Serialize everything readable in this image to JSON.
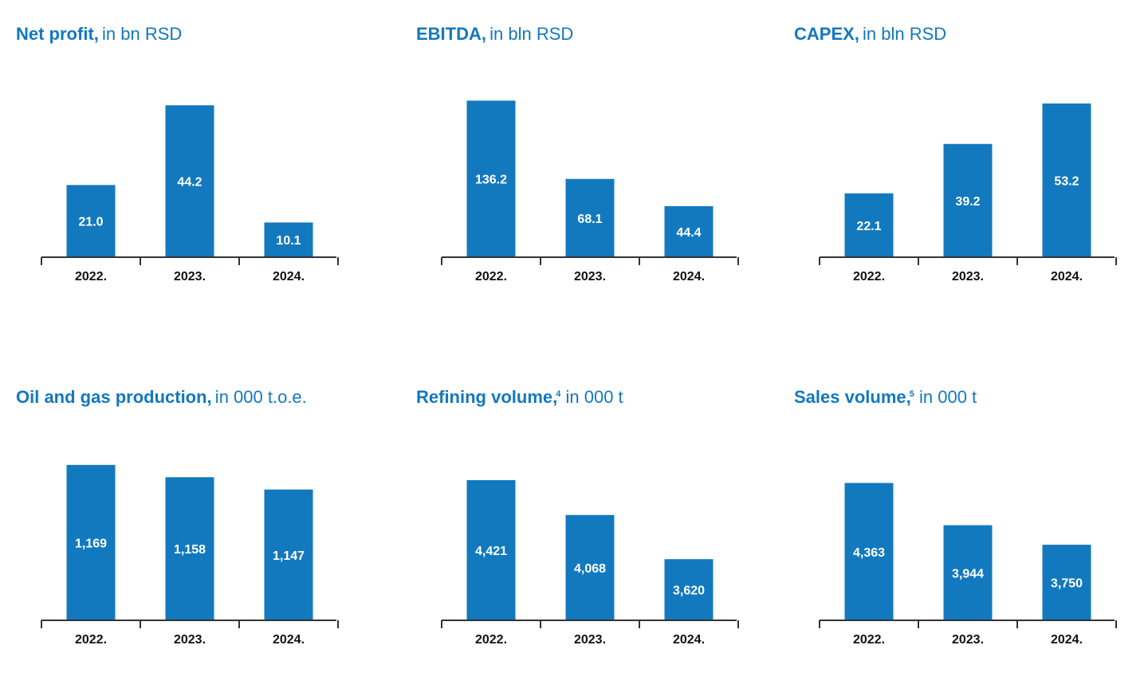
{
  "chart_data": [
    {
      "type": "bar",
      "title": "Net profit,",
      "title_sup": "",
      "unit": " in bn RSD",
      "categories": [
        "2022.",
        "2023.",
        "2024."
      ],
      "values": [
        21.0,
        44.2,
        10.1
      ],
      "value_labels": [
        "21.0",
        "44.2",
        "10.1"
      ],
      "ylim": [
        0,
        47.5
      ],
      "grid": false,
      "bar_color": "#1379bf"
    },
    {
      "type": "bar",
      "title": "EBITDA,",
      "title_sup": "",
      "unit": " in bln RSD",
      "categories": [
        "2022.",
        "2023.",
        "2024."
      ],
      "values": [
        136.2,
        68.1,
        44.4
      ],
      "value_labels": [
        "136.2",
        "68.1",
        "44.4"
      ],
      "ylim": [
        0,
        142
      ],
      "grid": false,
      "bar_color": "#1379bf"
    },
    {
      "type": "bar",
      "title": "CAPEX,",
      "title_sup": "",
      "unit": " in bln RSD",
      "categories": [
        "2022.",
        "2023.",
        "2024."
      ],
      "values": [
        22.1,
        39.2,
        53.2
      ],
      "value_labels": [
        "22.1",
        "39.2",
        "53.2"
      ],
      "ylim": [
        0,
        56.5
      ],
      "grid": false,
      "bar_color": "#1379bf"
    },
    {
      "type": "bar",
      "title": "Oil and gas production,",
      "title_sup": "",
      "unit": " in 000 t.o.e.",
      "categories": [
        "2022.",
        "2023.",
        "2024."
      ],
      "values": [
        1169,
        1158,
        1147
      ],
      "value_labels": [
        "1,169",
        "1,158",
        "1,147"
      ],
      "ylim": [
        1030,
        1176
      ],
      "grid": false,
      "bar_color": "#1379bf"
    },
    {
      "type": "bar",
      "title": "Refining volume,",
      "title_sup": "4",
      "unit": " in 000 t",
      "categories": [
        "2022.",
        "2023.",
        "2024."
      ],
      "values": [
        4421,
        4068,
        3620
      ],
      "value_labels": [
        "4,421",
        "4,068",
        "3,620"
      ],
      "ylim": [
        3000,
        4655
      ],
      "grid": false,
      "bar_color": "#1379bf"
    },
    {
      "type": "bar",
      "title": "Sales volume,",
      "title_sup": "5",
      "unit": " in 000 t",
      "categories": [
        "2022.",
        "2023.",
        "2024."
      ],
      "values": [
        4363,
        3944,
        3750
      ],
      "value_labels": [
        "4,363",
        "3,944",
        "3,750"
      ],
      "ylim": [
        3000,
        4620
      ],
      "grid": false,
      "bar_color": "#1379bf"
    }
  ]
}
